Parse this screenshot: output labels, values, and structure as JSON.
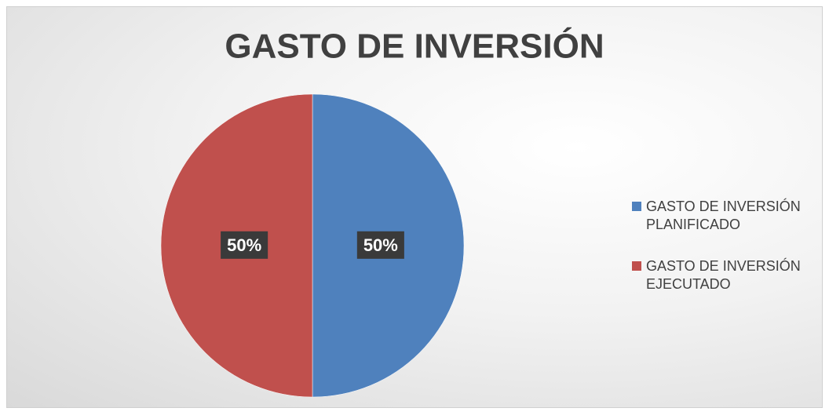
{
  "chart_data": {
    "type": "pie",
    "title": "GASTO DE INVERSIÓN",
    "categories": [
      "GASTO DE INVERSIÓN PLANIFICADO",
      "GASTO DE INVERSIÓN EJECUTADO"
    ],
    "values": [
      50,
      50
    ],
    "value_labels": [
      "50%",
      "50%"
    ],
    "colors": [
      "#4f81bd",
      "#c0504d"
    ],
    "legend": "right"
  }
}
